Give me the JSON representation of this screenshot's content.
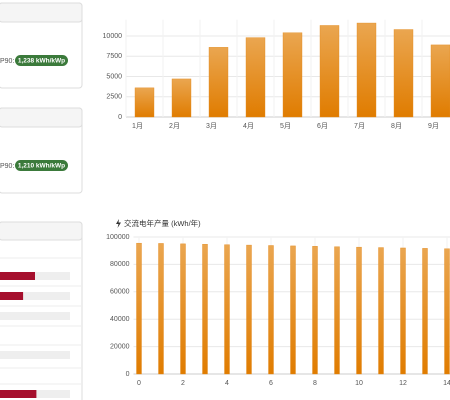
{
  "cards": [
    {
      "label": "P90:",
      "badge": "1,238 kWh/kWp"
    },
    {
      "label": "P90:",
      "badge": "1,210 kWh/kWp"
    }
  ],
  "progress": {
    "values": [
      50,
      33,
      0,
      0,
      52
    ],
    "color": "#a50f2d"
  },
  "chart_data": [
    {
      "type": "bar",
      "categories": [
        "1月",
        "2月",
        "3月",
        "4月",
        "5月",
        "6月",
        "7月",
        "8月",
        "9月"
      ],
      "values": [
        3600,
        4700,
        8600,
        9800,
        10400,
        11300,
        11600,
        10800,
        8900
      ],
      "color": "#e38a1e",
      "ylim": [
        0,
        12000
      ],
      "yticks": [
        0,
        2500,
        5000,
        7500,
        10000
      ],
      "grid": true
    },
    {
      "type": "bar",
      "title": "交流电年产量 (kWh/年)",
      "x": [
        0,
        1,
        2,
        3,
        4,
        5,
        6,
        7,
        8,
        9,
        10,
        11,
        12,
        13,
        14
      ],
      "values": [
        95500,
        95300,
        95000,
        94700,
        94400,
        94100,
        93800,
        93500,
        93200,
        92900,
        92600,
        92300,
        92000,
        91700,
        91400
      ],
      "color": "#e38a1e",
      "xlim": [
        -0.25,
        14.75
      ],
      "xticks": [
        0,
        2,
        4,
        6,
        8,
        10,
        12,
        14
      ],
      "ylim": [
        0,
        100000
      ],
      "yticks": [
        0,
        20000,
        40000,
        60000,
        80000,
        100000
      ],
      "grid": true
    }
  ]
}
